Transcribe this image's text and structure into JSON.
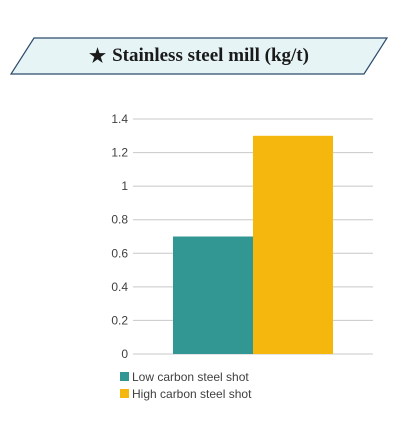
{
  "banner": {
    "star": "★",
    "title": "Stainless steel mill (kg/t)"
  },
  "colors": {
    "banner_fill": "#e6f4f6",
    "banner_border": "#2c4a6a",
    "low_carbon": "#329792",
    "high_carbon": "#f5b70d",
    "grid": "#c8c8c8",
    "axis_text": "#404040"
  },
  "chart_data": {
    "type": "bar",
    "categories": [
      ""
    ],
    "series": [
      {
        "name": "Low carbon steel shot",
        "values": [
          0.7
        ],
        "color": "#329792"
      },
      {
        "name": "High carbon steel shot",
        "values": [
          1.3
        ],
        "color": "#f5b70d"
      }
    ],
    "yticks": [
      "0",
      "0.2",
      "0.4",
      "0.6",
      "0.8",
      "1",
      "1.2",
      "1.4"
    ],
    "ylim": [
      0,
      1.4
    ],
    "grid": true,
    "legend_position": "bottom-left"
  }
}
